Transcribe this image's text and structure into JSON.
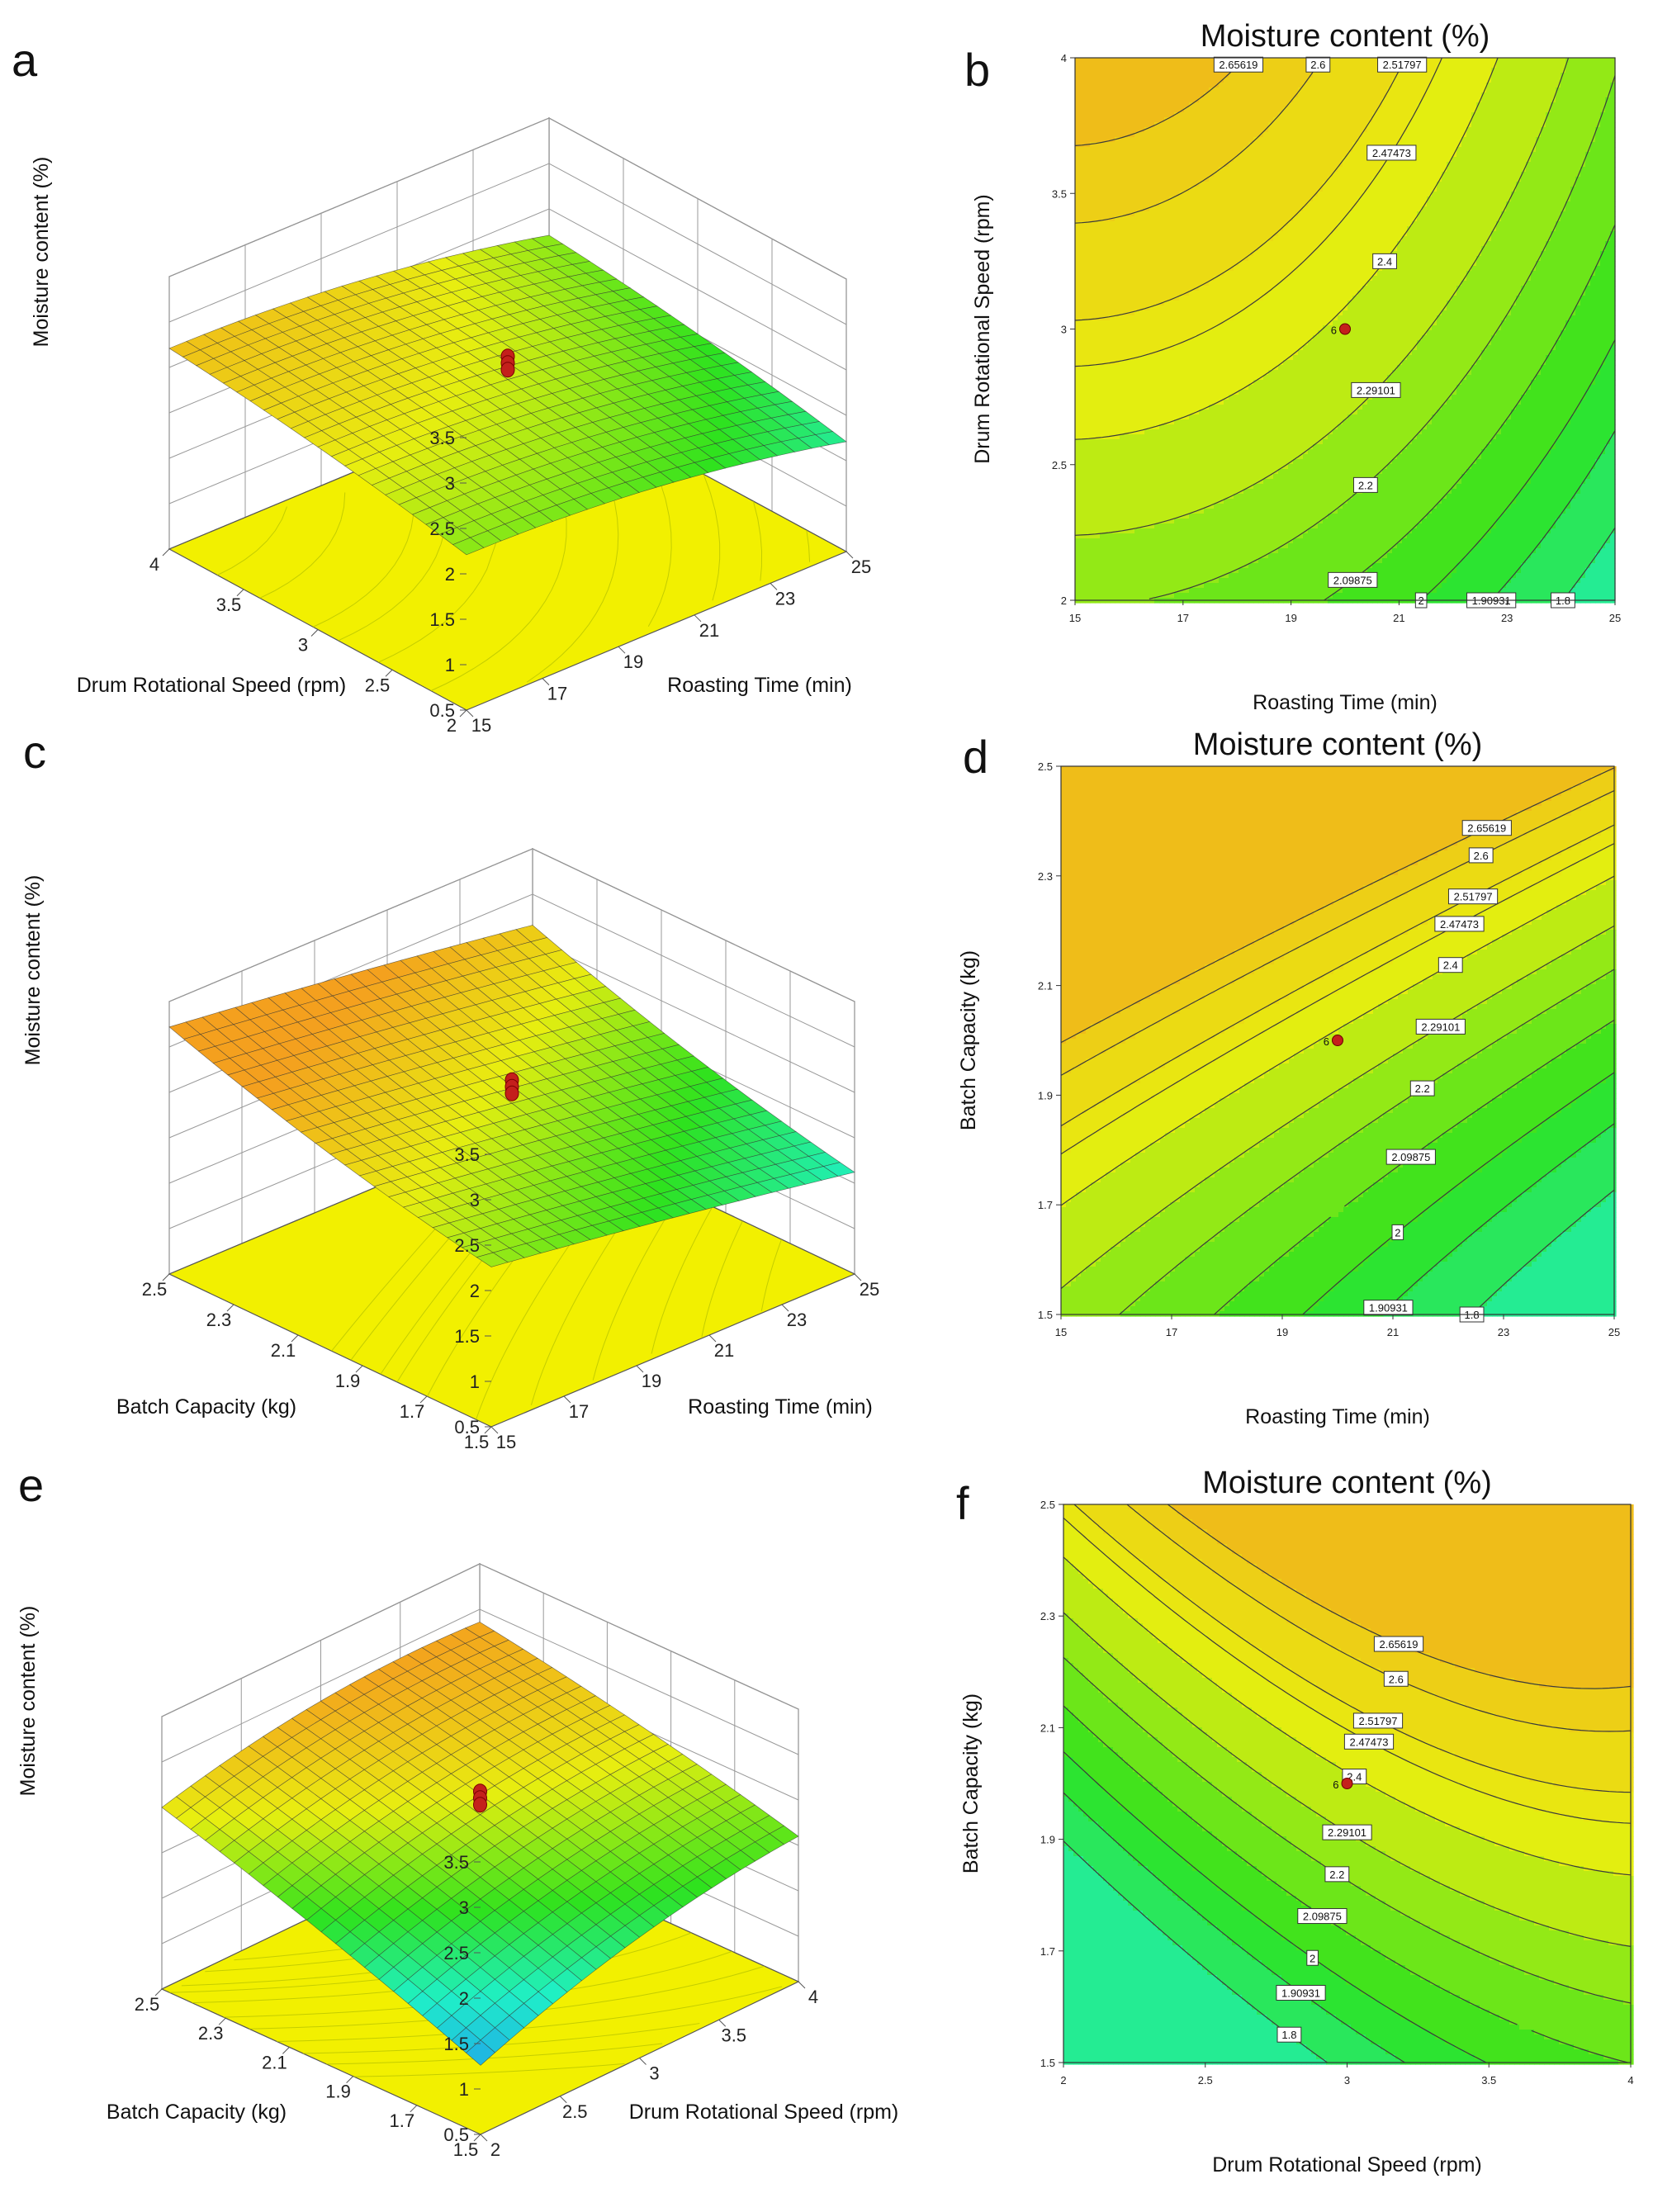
{
  "figure": {
    "panel_labels": [
      "a",
      "b",
      "c",
      "d",
      "e",
      "f"
    ],
    "colors": {
      "high": "#f4a01e",
      "mid": "#e8ee10",
      "low": "#2ee21e",
      "lowest": "#1ff0c8",
      "floor": "#f2f000",
      "point": "#c4201c"
    }
  },
  "chart_data": [
    {
      "id": "a",
      "type": "surface3d",
      "zlabel": "Moisture content (%)",
      "xlabel": "Roasting Time (min)",
      "ylabel": "Drum Rotational Speed (rpm)",
      "xticks": [
        "15",
        "17",
        "19",
        "21",
        "23",
        "25"
      ],
      "yticks": [
        "2",
        "2.5",
        "3",
        "3.5",
        "4"
      ],
      "zticks": [
        "0.5",
        "1",
        "1.5",
        "2",
        "2.5",
        "3",
        "3.5"
      ],
      "xlim": [
        15,
        25
      ],
      "ylim": [
        2,
        4
      ],
      "zlim": [
        0.5,
        3.5
      ],
      "model": {
        "c0": 2.38,
        "cx": -0.25,
        "cy": 0.25,
        "cxx": -0.12,
        "cyy": -0.05,
        "cxy": 0
      },
      "design_point": {
        "x": 20,
        "y": 3,
        "z": 2.38
      }
    },
    {
      "id": "b",
      "type": "contour",
      "title": "Moisture content (%)",
      "xlabel": "Roasting Time (min)",
      "ylabel": "Drum Rotational Speed (rpm)",
      "xticks": [
        "15",
        "17",
        "19",
        "21",
        "23",
        "25"
      ],
      "yticks": [
        "2",
        "2.5",
        "3",
        "3.5",
        "4"
      ],
      "xlim": [
        15,
        25
      ],
      "ylim": [
        2,
        4
      ],
      "model": {
        "c0": 2.38,
        "cx": -0.25,
        "cy": 0.25,
        "cxx": -0.12,
        "cyy": -0.05,
        "cxy": 0
      },
      "contour_levels": [
        1.8,
        1.90931,
        2.0,
        2.09875,
        2.2,
        2.29101,
        2.4,
        2.47473,
        2.51797,
        2.6,
        2.65619
      ],
      "contour_labels": [
        "1.8",
        "1.90931",
        "2",
        "2.09875",
        "2.2",
        "2.29101",
        "2.4",
        "2.47473",
        "2.51797",
        "2.6",
        "2.65619"
      ],
      "design_point": {
        "x": 20,
        "y": 3
      },
      "design_point_label": "6"
    },
    {
      "id": "c",
      "type": "surface3d",
      "zlabel": "Moisture content (%)",
      "xlabel": "Roasting Time (min)",
      "ylabel": "Batch Capacity (kg)",
      "xticks": [
        "15",
        "17",
        "19",
        "21",
        "23",
        "25"
      ],
      "yticks": [
        "1.5",
        "1.7",
        "1.9",
        "2.1",
        "2.3",
        "2.5"
      ],
      "zticks": [
        "0.5",
        "1",
        "1.5",
        "2",
        "2.5",
        "3",
        "3.5"
      ],
      "xlim": [
        15,
        25
      ],
      "ylim": [
        1.5,
        2.5
      ],
      "zlim": [
        0.5,
        3.5
      ],
      "model": {
        "c0": 2.38,
        "cx": -0.3,
        "cy": 0.5,
        "cxx": -0.02,
        "cyy": 0.08,
        "cxy": 0.02
      },
      "design_point": {
        "x": 20,
        "y": 2.0,
        "z": 2.38
      }
    },
    {
      "id": "d",
      "type": "contour",
      "title": "Moisture content (%)",
      "xlabel": "Roasting Time (min)",
      "ylabel": "Batch Capacity (kg)",
      "xticks": [
        "15",
        "17",
        "19",
        "21",
        "23",
        "25"
      ],
      "yticks": [
        "1.5",
        "1.7",
        "1.9",
        "2.1",
        "2.3",
        "2.5"
      ],
      "xlim": [
        15,
        25
      ],
      "ylim": [
        1.5,
        2.5
      ],
      "model": {
        "c0": 2.38,
        "cx": -0.3,
        "cy": 0.5,
        "cxx": -0.02,
        "cyy": 0.08,
        "cxy": 0.02
      },
      "contour_levels": [
        1.8,
        1.90931,
        2.0,
        2.09875,
        2.2,
        2.29101,
        2.4,
        2.47473,
        2.51797,
        2.6,
        2.65619
      ],
      "contour_labels": [
        "1.8",
        "1.90931",
        "2",
        "2.09875",
        "2.2",
        "2.29101",
        "2.4",
        "2.47473",
        "2.51797",
        "2.6",
        "2.65619"
      ],
      "design_point": {
        "x": 20,
        "y": 2.0
      },
      "design_point_label": "6"
    },
    {
      "id": "e",
      "type": "surface3d",
      "zlabel": "Moisture content (%)",
      "xlabel": "Drum Rotational Speed (rpm)",
      "ylabel": "Batch Capacity (kg)",
      "xticks": [
        "2",
        "2.5",
        "3",
        "3.5",
        "4"
      ],
      "yticks": [
        "1.5",
        "1.7",
        "1.9",
        "2.1",
        "2.3",
        "2.5"
      ],
      "zticks": [
        "0.5",
        "1",
        "1.5",
        "2",
        "2.5",
        "3",
        "3.5"
      ],
      "xlim": [
        2,
        4
      ],
      "ylim": [
        1.5,
        2.5
      ],
      "zlim": [
        0.5,
        3.5
      ],
      "model": {
        "c0": 2.38,
        "cx": 0.3,
        "cy": 0.5,
        "cxx": -0.15,
        "cyy": -0.05,
        "cxy": -0.12
      },
      "design_point": {
        "x": 3,
        "y": 2.0,
        "z": 2.38
      }
    },
    {
      "id": "f",
      "type": "contour",
      "title": "Moisture content (%)",
      "xlabel": "Drum Rotational Speed (rpm)",
      "ylabel": "Batch Capacity (kg)",
      "xticks": [
        "2",
        "2.5",
        "3",
        "3.5",
        "4"
      ],
      "yticks": [
        "1.5",
        "1.7",
        "1.9",
        "2.1",
        "2.3",
        "2.5"
      ],
      "xlim": [
        2,
        4
      ],
      "ylim": [
        1.5,
        2.5
      ],
      "model": {
        "c0": 2.38,
        "cx": 0.3,
        "cy": 0.5,
        "cxx": -0.15,
        "cyy": -0.05,
        "cxy": -0.12
      },
      "contour_levels": [
        1.8,
        1.90931,
        2.0,
        2.09875,
        2.2,
        2.29101,
        2.4,
        2.47473,
        2.51797,
        2.6,
        2.65619
      ],
      "contour_labels": [
        "1.8",
        "1.90931",
        "2",
        "2.09875",
        "2.2",
        "2.29101",
        "2.4",
        "2.47473",
        "2.51797",
        "2.6",
        "2.65619"
      ],
      "design_point": {
        "x": 3,
        "y": 2.0
      },
      "design_point_label": "6"
    }
  ]
}
